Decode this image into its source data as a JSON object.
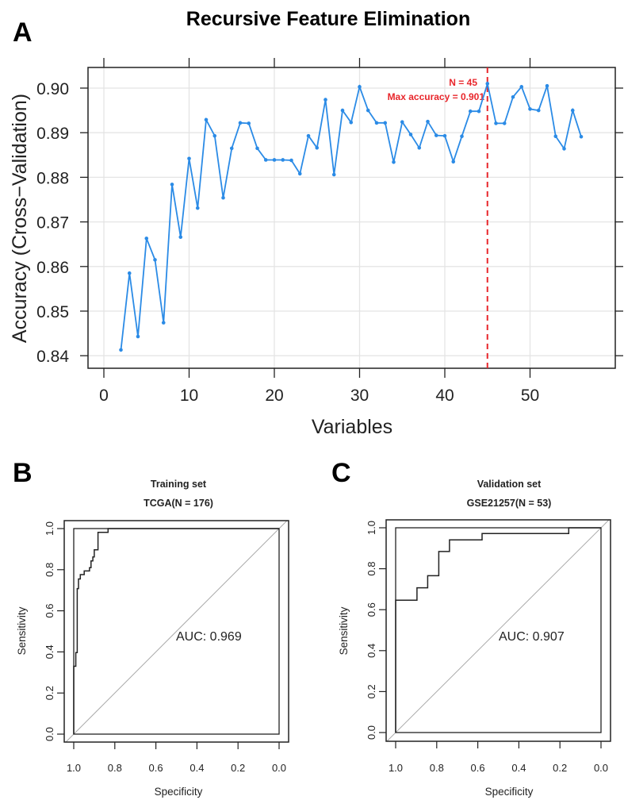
{
  "colors": {
    "line": "#2b8be6",
    "max_line": "#e8262b",
    "grid": "#e4e4e4",
    "axis": "#222222",
    "diag": "#aaaaaa"
  },
  "chart_data": [
    {
      "panel_label": "A",
      "type": "line",
      "title": "Recursive Feature Elimination",
      "xlabel": "Variables",
      "ylabel": "Accuracy (Cross−Validation)",
      "xlim": [
        0,
        58
      ],
      "ylim": [
        0.838,
        0.9048
      ],
      "xticks": [
        "0",
        "10",
        "20",
        "30",
        "40",
        "50"
      ],
      "yticks": [
        "0.84",
        "0.85",
        "0.86",
        "0.87",
        "0.88",
        "0.89",
        "0.90"
      ],
      "grid": true,
      "x": [
        2,
        3,
        4,
        5,
        6,
        7,
        8,
        9,
        10,
        11,
        12,
        13,
        14,
        15,
        16,
        17,
        18,
        19,
        20,
        21,
        22,
        23,
        24,
        25,
        26,
        27,
        28,
        29,
        30,
        31,
        32,
        33,
        34,
        35,
        36,
        37,
        38,
        39,
        40,
        41,
        42,
        43,
        44,
        45,
        46,
        47,
        48,
        49,
        50,
        51,
        52,
        53,
        54,
        55,
        56
      ],
      "y": [
        0.8413,
        0.8585,
        0.8443,
        0.8663,
        0.8615,
        0.8474,
        0.8784,
        0.8666,
        0.8842,
        0.8731,
        0.8929,
        0.8893,
        0.8754,
        0.8865,
        0.8922,
        0.8921,
        0.8865,
        0.8839,
        0.8839,
        0.8839,
        0.8838,
        0.8808,
        0.8893,
        0.8866,
        0.8974,
        0.8806,
        0.895,
        0.8923,
        0.9003,
        0.895,
        0.8922,
        0.8922,
        0.8834,
        0.8924,
        0.8896,
        0.8866,
        0.8925,
        0.8894,
        0.8893,
        0.8835,
        0.8892,
        0.8948,
        0.8948,
        0.901,
        0.8921,
        0.8921,
        0.898,
        0.9003,
        0.8953,
        0.895,
        0.9005,
        0.8892,
        0.8864,
        0.895,
        0.8891
      ],
      "max_marker": {
        "x": 45,
        "label_n": "N = 45",
        "label_acc": "Max accuracy = 0.901"
      }
    },
    {
      "panel_label": "B",
      "type": "line",
      "title": "Training set",
      "subtitle": "TCGA(N = 176)",
      "xlabel": "Specificity",
      "ylabel": "Sensitivity",
      "xlim": [
        1.0,
        0.0
      ],
      "ylim": [
        0.0,
        1.0
      ],
      "xticks": [
        "1.0",
        "0.8",
        "0.6",
        "0.4",
        "0.2",
        "0.0"
      ],
      "yticks": [
        "0.0",
        "0.2",
        "0.4",
        "0.6",
        "0.8",
        "1.0"
      ],
      "auc_label": "AUC: 0.969",
      "specificity": [
        1,
        1,
        0.99,
        0.99,
        0.983,
        0.983,
        0.977,
        0.977,
        0.968,
        0.968,
        0.949,
        0.949,
        0.923,
        0.923,
        0.916,
        0.916,
        0.907,
        0.907,
        0.9,
        0.9,
        0.882,
        0.882,
        0.833,
        0.833,
        0
      ],
      "sensitivity": [
        0,
        0.33,
        0.33,
        0.397,
        0.397,
        0.708,
        0.708,
        0.755,
        0.755,
        0.776,
        0.776,
        0.794,
        0.794,
        0.81,
        0.81,
        0.843,
        0.843,
        0.862,
        0.862,
        0.897,
        0.897,
        0.982,
        0.982,
        1,
        1
      ]
    },
    {
      "panel_label": "C",
      "type": "line",
      "title": "Validation set",
      "subtitle": "GSE21257(N = 53)",
      "xlabel": "Specificity",
      "ylabel": "Sensitivity",
      "xlim": [
        1.0,
        0.0
      ],
      "ylim": [
        0.0,
        1.0
      ],
      "xticks": [
        "1.0",
        "0.8",
        "0.6",
        "0.4",
        "0.2",
        "0.0"
      ],
      "yticks": [
        "0.0",
        "0.2",
        "0.4",
        "0.6",
        "0.8",
        "1.0"
      ],
      "auc_label": "AUC: 0.907",
      "specificity": [
        1,
        1,
        0.896,
        0.896,
        0.844,
        0.844,
        0.79,
        0.79,
        0.738,
        0.738,
        0.579,
        0.579,
        0.157,
        0.157,
        0
      ],
      "sensitivity": [
        0,
        0.646,
        0.646,
        0.707,
        0.707,
        0.766,
        0.766,
        0.884,
        0.884,
        0.941,
        0.941,
        0.972,
        0.972,
        1,
        1
      ]
    }
  ]
}
